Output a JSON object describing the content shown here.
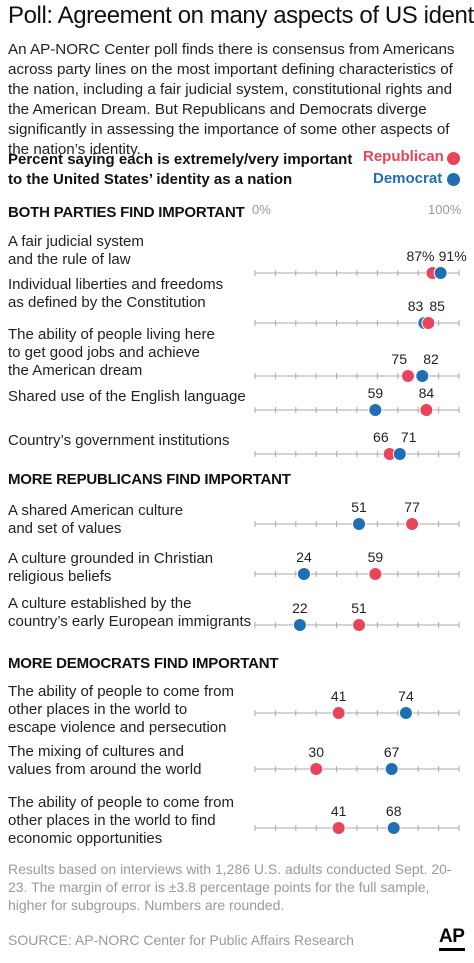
{
  "title": "Poll: Agreement on many aspects of US identity",
  "intro": "An AP-NORC Center poll finds there is consensus from Americans across party lines on the most important defining characteristics of the nation, including a fair judicial system, constitutional rights and the American Dream. But Republicans and Democrats diverge significantly in assessing the importance of some other aspects of the nation’s identity.",
  "subhead": "Percent saying each is extremely/very important\nto the United States’ identity as a nation",
  "legend": {
    "republican": "Republican",
    "democrat": "Democrat"
  },
  "colors": {
    "republican": "#e8455c",
    "democrat": "#1f6fb5",
    "axis": "#aaaaaa"
  },
  "axis": {
    "min_label": "0%",
    "max_label": "100%"
  },
  "sections": [
    {
      "title": "BOTH PARTIES FIND IMPORTANT"
    },
    {
      "title": "MORE REPUBLICANS FIND IMPORTANT"
    },
    {
      "title": "MORE DEMOCRATS FIND IMPORTANT"
    }
  ],
  "chart_data": {
    "type": "scatter",
    "xlim": [
      0,
      100
    ],
    "series": [
      {
        "name": "Republican",
        "color": "#e8455c"
      },
      {
        "name": "Democrat",
        "color": "#1f6fb5"
      }
    ],
    "rows": [
      {
        "label": "A fair judicial system\nand the rule of law",
        "republican": 87,
        "democrat": 91,
        "r_text": "87%",
        "d_text": "91%"
      },
      {
        "label": "Individual liberties and freedoms\nas defined by the Constitution",
        "republican": 85,
        "democrat": 83,
        "r_text": "85",
        "d_text": "83"
      },
      {
        "label": "The ability of people living here\n to get good jobs and achieve\n the American dream",
        "republican": 75,
        "democrat": 82,
        "r_text": "75",
        "d_text": "82"
      },
      {
        "label": "Shared use of the English language",
        "republican": 84,
        "democrat": 59,
        "r_text": "84",
        "d_text": "59"
      },
      {
        "label": "Country’s government institutions",
        "republican": 66,
        "democrat": 71,
        "r_text": "66",
        "d_text": "71"
      },
      {
        "label": "A shared American culture\nand set of values",
        "republican": 77,
        "democrat": 51,
        "r_text": "77",
        "d_text": "51"
      },
      {
        "label": "A culture grounded in Christian\nreligious beliefs",
        "republican": 59,
        "democrat": 24,
        "r_text": "59",
        "d_text": "24"
      },
      {
        "label": "A culture established by the\ncountry’s early European immigrants",
        "republican": 51,
        "democrat": 22,
        "r_text": "51",
        "d_text": "22"
      },
      {
        "label": "The ability of people to come from\nother places in the world to\n escape violence and persecution",
        "republican": 41,
        "democrat": 74,
        "r_text": "41",
        "d_text": "74"
      },
      {
        "label": "The mixing of cultures and\nvalues from around the world",
        "republican": 30,
        "democrat": 67,
        "r_text": "30",
        "d_text": "67"
      },
      {
        "label": "The ability of people to come from\nother places in the world to find\neconomic opportunities",
        "republican": 41,
        "democrat": 68,
        "r_text": "41",
        "d_text": "68"
      }
    ]
  },
  "footnote": "Results based on interviews with 1,286 U.S. adults conducted Sept. 20-23. The margin of error is ±3.8 percentage points for the full sample, higher for subgroups. Numbers are rounded.",
  "source": "SOURCE: AP-NORC Center for Public Affairs Research",
  "logo": "AP"
}
